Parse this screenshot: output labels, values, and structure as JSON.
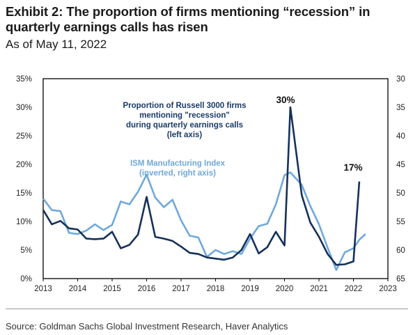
{
  "header": {
    "title": "Exhibit 2: The proportion of firms mentioning “recession” in quarterly earnings calls has risen",
    "subtitle": "As of May 11, 2022"
  },
  "footer": {
    "source": "Source: Goldman Sachs Global Investment Research, Haver Analytics"
  },
  "colors": {
    "recession_series": "#15305a",
    "ism_series": "#6fa8dc",
    "axis_frame": "#000000",
    "label_dark": "#1b3a66",
    "label_light": "#6fa8dc"
  },
  "chart_data": {
    "type": "line",
    "xlim": [
      2013,
      2023
    ],
    "x_ticks": [
      "2013",
      "2014",
      "2015",
      "2016",
      "2017",
      "2018",
      "2019",
      "2020",
      "2021",
      "2022",
      "2023"
    ],
    "left_axis": {
      "ylim": [
        0,
        35
      ],
      "ticks": [
        "0%",
        "5%",
        "10%",
        "15%",
        "20%",
        "25%",
        "30%",
        "35%"
      ],
      "tick_values": [
        0,
        5,
        10,
        15,
        20,
        25,
        30,
        35
      ]
    },
    "right_axis": {
      "inverted": true,
      "ylim": [
        65,
        30
      ],
      "ticks": [
        "30",
        "35",
        "40",
        "45",
        "50",
        "55",
        "60",
        "65"
      ],
      "tick_values": [
        30,
        35,
        40,
        45,
        50,
        55,
        60,
        65
      ]
    },
    "grid": false,
    "series": [
      {
        "key": "recession",
        "axis": "left",
        "points": [
          [
            2013.0,
            12.0
          ],
          [
            2013.25,
            9.5
          ],
          [
            2013.5,
            10.1
          ],
          [
            2013.75,
            8.8
          ],
          [
            2014.0,
            8.6
          ],
          [
            2014.25,
            7.0
          ],
          [
            2014.5,
            6.9
          ],
          [
            2014.75,
            7.0
          ],
          [
            2015.0,
            8.2
          ],
          [
            2015.25,
            5.3
          ],
          [
            2015.5,
            5.9
          ],
          [
            2015.75,
            7.7
          ],
          [
            2016.0,
            14.3
          ],
          [
            2016.25,
            7.3
          ],
          [
            2016.5,
            7.0
          ],
          [
            2016.75,
            6.6
          ],
          [
            2017.0,
            5.6
          ],
          [
            2017.25,
            4.5
          ],
          [
            2017.5,
            4.3
          ],
          [
            2017.75,
            3.7
          ],
          [
            2018.0,
            3.5
          ],
          [
            2018.25,
            3.3
          ],
          [
            2018.5,
            3.7
          ],
          [
            2018.75,
            5.0
          ],
          [
            2019.0,
            7.8
          ],
          [
            2019.25,
            4.4
          ],
          [
            2019.5,
            5.5
          ],
          [
            2019.75,
            8.2
          ],
          [
            2020.0,
            5.8
          ],
          [
            2020.17,
            30.0
          ],
          [
            2020.5,
            14.6
          ],
          [
            2020.75,
            9.8
          ],
          [
            2021.0,
            7.3
          ],
          [
            2021.25,
            4.3
          ],
          [
            2021.5,
            2.4
          ],
          [
            2021.75,
            2.5
          ],
          [
            2022.0,
            3.0
          ],
          [
            2022.17,
            17.0
          ]
        ]
      },
      {
        "key": "ism",
        "axis": "right",
        "points": [
          [
            2013.0,
            51.0
          ],
          [
            2013.25,
            53.0
          ],
          [
            2013.5,
            53.2
          ],
          [
            2013.75,
            57.0
          ],
          [
            2014.0,
            57.2
          ],
          [
            2014.25,
            56.6
          ],
          [
            2014.5,
            55.5
          ],
          [
            2014.75,
            56.5
          ],
          [
            2015.0,
            55.6
          ],
          [
            2015.25,
            51.5
          ],
          [
            2015.5,
            52.0
          ],
          [
            2015.75,
            49.8
          ],
          [
            2016.0,
            46.8
          ],
          [
            2016.25,
            50.8
          ],
          [
            2016.5,
            52.5
          ],
          [
            2016.75,
            51.2
          ],
          [
            2017.0,
            54.8
          ],
          [
            2017.25,
            57.5
          ],
          [
            2017.5,
            57.8
          ],
          [
            2017.75,
            61.2
          ],
          [
            2018.0,
            60.0
          ],
          [
            2018.25,
            60.7
          ],
          [
            2018.5,
            60.2
          ],
          [
            2018.75,
            60.7
          ],
          [
            2019.0,
            58.0
          ],
          [
            2019.25,
            55.8
          ],
          [
            2019.5,
            55.4
          ],
          [
            2019.75,
            52.0
          ],
          [
            2020.0,
            46.9
          ],
          [
            2020.17,
            46.4
          ],
          [
            2020.5,
            48.6
          ],
          [
            2020.75,
            52.3
          ],
          [
            2021.0,
            55.5
          ],
          [
            2021.25,
            59.6
          ],
          [
            2021.5,
            63.5
          ],
          [
            2021.75,
            60.4
          ],
          [
            2022.0,
            59.7
          ],
          [
            2022.17,
            58.2
          ],
          [
            2022.35,
            57.2
          ]
        ]
      }
    ],
    "annotations": {
      "recession_label": [
        "Proportion of Russell 3000 firms",
        "mentioning \"recession\"",
        "during quarterly earnings calls",
        "(left axis)"
      ],
      "ism_label": [
        "ISM Manufacturing Index",
        "(inverted, right axis)"
      ],
      "peak_2020": "30%",
      "peak_2022": "17%"
    }
  }
}
